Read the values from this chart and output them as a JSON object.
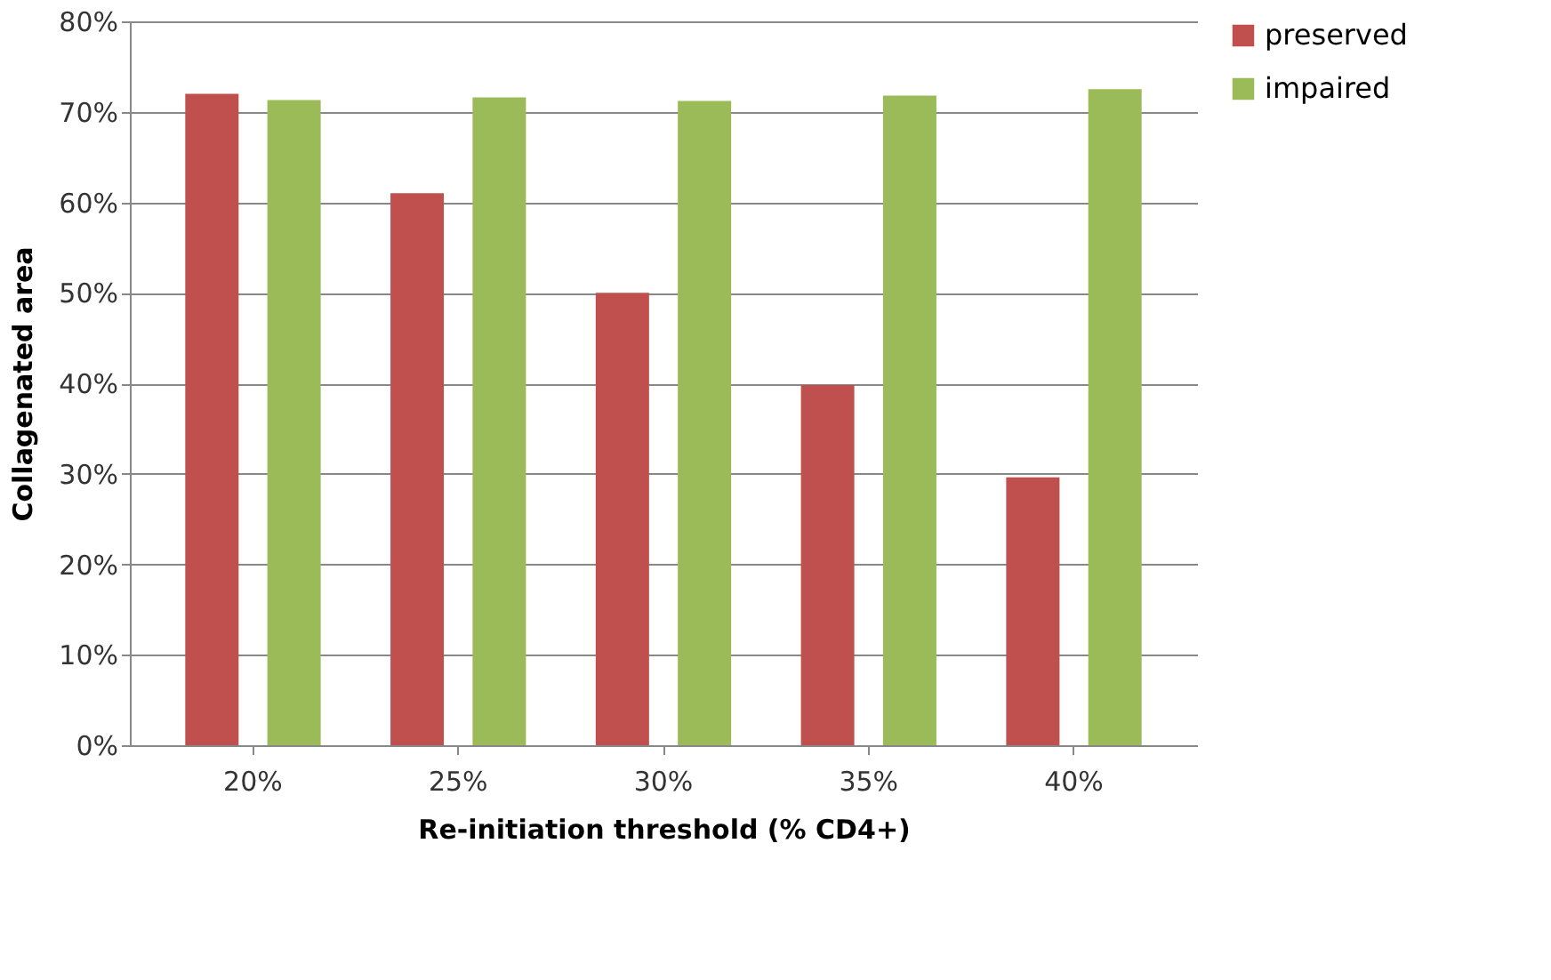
{
  "chart_data": {
    "type": "bar",
    "xlabel": "Re-initiation threshold (% CD4+)",
    "ylabel": "Collagenated area",
    "categories": [
      "20%",
      "25%",
      "30%",
      "35%",
      "40%"
    ],
    "series": [
      {
        "name": "preserved",
        "color": "#c0504d",
        "values": [
          72.0,
          61.0,
          50.0,
          39.8,
          29.6
        ]
      },
      {
        "name": "impaired",
        "color": "#9bbb59",
        "values": [
          71.3,
          71.6,
          71.2,
          71.8,
          72.5
        ]
      }
    ],
    "ylim": [
      0,
      80
    ],
    "yticks": [
      {
        "value": 0,
        "label": "0%"
      },
      {
        "value": 10,
        "label": "10%"
      },
      {
        "value": 20,
        "label": "20%"
      },
      {
        "value": 30,
        "label": "30%"
      },
      {
        "value": 40,
        "label": "40%"
      },
      {
        "value": 50,
        "label": "50%"
      },
      {
        "value": 60,
        "label": "60%"
      },
      {
        "value": 70,
        "label": "70%"
      },
      {
        "value": 80,
        "label": "80%"
      }
    ],
    "grid": "y",
    "legend": "right"
  }
}
